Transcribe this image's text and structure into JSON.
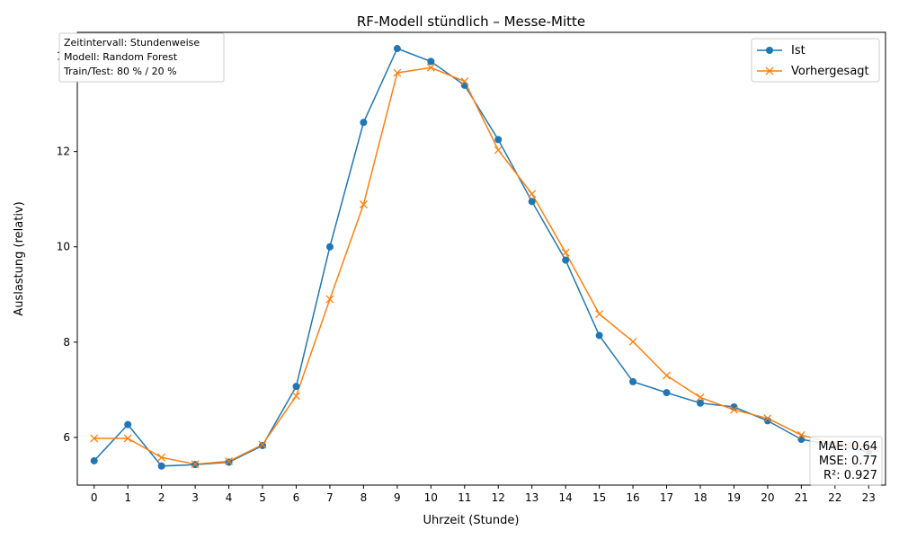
{
  "chart_data": {
    "type": "line",
    "title": "RF-Modell stündlich – Messe-Mitte",
    "xlabel": "Uhrzeit (Stunde)",
    "ylabel": "Auslastung (relativ)",
    "x": [
      0,
      1,
      2,
      3,
      4,
      5,
      6,
      7,
      8,
      9,
      10,
      11,
      12,
      13,
      14,
      15,
      16,
      17,
      18,
      19,
      20,
      21,
      22,
      23
    ],
    "x_ticks": [
      "0",
      "1",
      "2",
      "3",
      "4",
      "5",
      "6",
      "7",
      "8",
      "9",
      "10",
      "11",
      "12",
      "13",
      "14",
      "15",
      "16",
      "17",
      "18",
      "19",
      "20",
      "21",
      "22",
      "23"
    ],
    "xlim": [
      -0.5,
      23.5
    ],
    "ylim": [
      5.0,
      14.5
    ],
    "y_ticks": [
      6,
      8,
      10,
      12,
      14
    ],
    "grid": false,
    "legend_position": "top-right",
    "series": [
      {
        "name": "Ist",
        "color": "#1f77b4",
        "marker": "circle",
        "values": [
          5.51,
          6.27,
          5.4,
          5.43,
          5.48,
          5.83,
          7.07,
          10.0,
          12.61,
          14.16,
          13.89,
          13.39,
          12.25,
          10.95,
          9.72,
          8.14,
          7.17,
          6.94,
          6.72,
          6.64,
          6.35,
          5.96,
          5.84,
          5.7
        ]
      },
      {
        "name": "Vorhergesagt",
        "color": "#ff7f0e",
        "marker": "x",
        "values": [
          5.98,
          5.98,
          5.58,
          5.44,
          5.5,
          5.85,
          6.87,
          8.9,
          10.89,
          13.65,
          13.76,
          13.47,
          12.03,
          11.11,
          9.88,
          8.59,
          8.01,
          7.3,
          6.84,
          6.58,
          6.4,
          6.05,
          5.87,
          5.78
        ]
      }
    ],
    "annotations": {
      "info_box": [
        "Zeitintervall: Stundenweise",
        "Modell: Random Forest",
        "Train/Test: 80 % / 20 %"
      ],
      "metrics_box": [
        "MAE: 0.64",
        "MSE: 0.77",
        "R²: 0.927"
      ]
    }
  }
}
